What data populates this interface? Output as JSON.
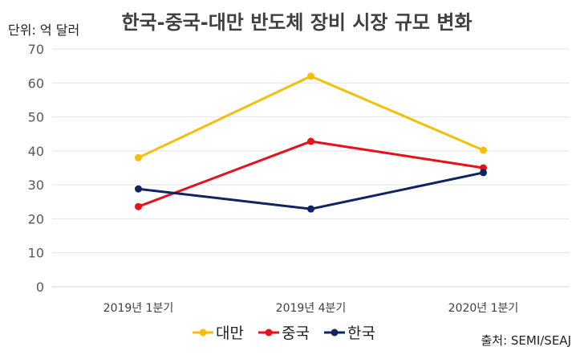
{
  "chart_data": {
    "type": "line",
    "title": "한국-중국-대만 반도체 장비 시장 규모 변화",
    "unit_label": "단위: 억 달러",
    "source": "출처: SEMI/SEAJ",
    "categories": [
      "2019년 1분기",
      "2019년 4분기",
      "2020년 1분기"
    ],
    "y_ticks": [
      "0",
      "10",
      "20",
      "30",
      "40",
      "50",
      "60",
      "70"
    ],
    "ylim": [
      0,
      70
    ],
    "grid": true,
    "legend_position": "bottom",
    "series": [
      {
        "name": "대만",
        "color": "#F5BE0A",
        "values": [
          38,
          62,
          40.2
        ]
      },
      {
        "name": "중국",
        "color": "#E8101A",
        "values": [
          23.6,
          42.8,
          35
        ]
      },
      {
        "name": "한국",
        "color": "#0E2463",
        "values": [
          28.8,
          22.9,
          33.6
        ]
      }
    ]
  }
}
